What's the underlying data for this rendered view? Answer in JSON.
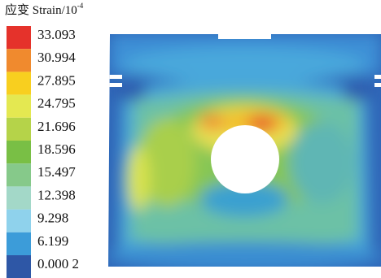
{
  "legend": {
    "title": "应变 Strain/10",
    "title_exponent": "-4",
    "items": [
      {
        "label": "33.093",
        "color": "#e5322b"
      },
      {
        "label": "30.994",
        "color": "#f08a2e"
      },
      {
        "label": "27.895",
        "color": "#f8cf1f"
      },
      {
        "label": "24.795",
        "color": "#e4e851"
      },
      {
        "label": "21.696",
        "color": "#b5d349"
      },
      {
        "label": "18.596",
        "color": "#79bf45"
      },
      {
        "label": "15.497",
        "color": "#86c98a"
      },
      {
        "label": "12.398",
        "color": "#a3d8c8"
      },
      {
        "label": "9.298",
        "color": "#8fd2ec"
      },
      {
        "label": "6.199",
        "color": "#3c9cd9"
      },
      {
        "label": "0.000 2",
        "color": "#2e57a6"
      }
    ]
  }
}
